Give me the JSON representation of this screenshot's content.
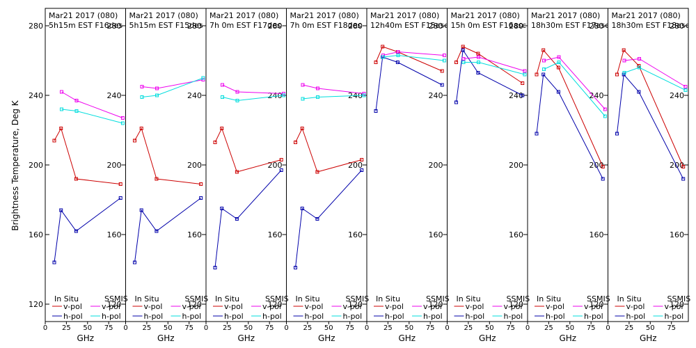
{
  "colors": {
    "insitu_v": "#cc0000",
    "insitu_h": "#0000aa",
    "ssmis_v": "#ee00ee",
    "ssmis_h": "#00dddd",
    "frame": "#000000",
    "background": "#ffffff"
  },
  "chart_data": {
    "type": "line",
    "ylabel": "Brightness Temperature, Deg K",
    "xlabel": "GHz",
    "xlim": [
      0,
      95
    ],
    "ylim": [
      110,
      290
    ],
    "yticks": [
      120,
      160,
      200,
      240,
      280
    ],
    "xticks": [
      0,
      25,
      50,
      75
    ],
    "xtick_labels": [
      "0",
      "25",
      "50",
      "75"
    ],
    "legend": {
      "insitu_header": "In Situ",
      "ssmis_header": "SSMIS",
      "vpol": "v-pol",
      "hpol": "h-pol"
    },
    "panels": [
      {
        "line1": "Mar21 2017 (080)",
        "line2": "5h15m EST F16des",
        "insitu_v": {
          "x": [
            10.7,
            18.7,
            36.5,
            89
          ],
          "y": [
            214,
            221,
            192,
            189
          ]
        },
        "insitu_h": {
          "x": [
            10.7,
            18.7,
            36.5,
            89
          ],
          "y": [
            144,
            174,
            162,
            181
          ]
        },
        "ssmis_v": {
          "x": [
            19.35,
            37,
            91.655
          ],
          "y": [
            242,
            237,
            227
          ]
        },
        "ssmis_h": {
          "x": [
            19.35,
            37,
            91.655
          ],
          "y": [
            232,
            231,
            224
          ]
        }
      },
      {
        "line1": "Mar21 2017 (080)",
        "line2": "5h15m EST F15des",
        "insitu_v": {
          "x": [
            10.7,
            18.7,
            36.5,
            89
          ],
          "y": [
            214,
            221,
            192,
            189
          ]
        },
        "insitu_h": {
          "x": [
            10.7,
            18.7,
            36.5,
            89
          ],
          "y": [
            144,
            174,
            162,
            181
          ]
        },
        "ssmis_v": {
          "x": [
            19.35,
            37,
            91.655
          ],
          "y": [
            245,
            244,
            249
          ]
        },
        "ssmis_h": {
          "x": [
            19.35,
            37,
            91.655
          ],
          "y": [
            239,
            240,
            250
          ]
        }
      },
      {
        "line1": "Mar21 2017 (080)",
        "line2": "7h 0m EST F17des",
        "insitu_v": {
          "x": [
            10.7,
            18.7,
            36.5,
            89
          ],
          "y": [
            213,
            221,
            196,
            203
          ]
        },
        "insitu_h": {
          "x": [
            10.7,
            18.7,
            36.5,
            89
          ],
          "y": [
            141,
            175,
            169,
            197
          ]
        },
        "ssmis_v": {
          "x": [
            19.35,
            37,
            91.655
          ],
          "y": [
            246,
            242,
            241
          ]
        },
        "ssmis_h": {
          "x": [
            19.35,
            37,
            91.655
          ],
          "y": [
            239,
            237,
            240
          ]
        }
      },
      {
        "line1": "Mar21 2017 (080)",
        "line2": "7h 0m EST F18des",
        "insitu_v": {
          "x": [
            10.7,
            18.7,
            36.5,
            89
          ],
          "y": [
            213,
            221,
            196,
            203
          ]
        },
        "insitu_h": {
          "x": [
            10.7,
            18.7,
            36.5,
            89
          ],
          "y": [
            141,
            175,
            169,
            197
          ]
        },
        "ssmis_v": {
          "x": [
            19.35,
            37,
            91.655
          ],
          "y": [
            246,
            244,
            241
          ]
        },
        "ssmis_h": {
          "x": [
            19.35,
            37,
            91.655
          ],
          "y": [
            238,
            239,
            240
          ]
        }
      },
      {
        "line1": "Mar21 2017 (080)",
        "line2": "12h40m EST F15asc",
        "insitu_v": {
          "x": [
            10.7,
            18.7,
            36.5,
            89
          ],
          "y": [
            259,
            268,
            265,
            254
          ]
        },
        "insitu_h": {
          "x": [
            10.7,
            18.7,
            36.5,
            89
          ],
          "y": [
            231,
            262,
            259,
            246
          ]
        },
        "ssmis_v": {
          "x": [
            19.35,
            37,
            91.655
          ],
          "y": [
            263,
            265,
            263
          ]
        },
        "ssmis_h": {
          "x": [
            19.35,
            37,
            91.655
          ],
          "y": [
            262,
            263,
            260
          ]
        }
      },
      {
        "line1": "Mar21 2017 (080)",
        "line2": "15h 0m EST F16asc",
        "insitu_v": {
          "x": [
            10.7,
            18.7,
            36.5,
            89
          ],
          "y": [
            259,
            268,
            264,
            247
          ]
        },
        "insitu_h": {
          "x": [
            10.7,
            18.7,
            36.5,
            89
          ],
          "y": [
            236,
            266,
            253,
            240
          ]
        },
        "ssmis_v": {
          "x": [
            19.35,
            37,
            91.655
          ],
          "y": [
            261,
            262,
            254
          ]
        },
        "ssmis_h": {
          "x": [
            19.35,
            37,
            91.655
          ],
          "y": [
            259,
            259,
            252
          ]
        }
      },
      {
        "line1": "Mar21 2017 (080)",
        "line2": "18h30m EST F17asc",
        "insitu_v": {
          "x": [
            10.7,
            18.7,
            36.5,
            89
          ],
          "y": [
            252,
            266,
            256,
            199
          ]
        },
        "insitu_h": {
          "x": [
            10.7,
            18.7,
            36.5,
            89
          ],
          "y": [
            218,
            252,
            242,
            192
          ]
        },
        "ssmis_v": {
          "x": [
            19.35,
            37,
            91.655
          ],
          "y": [
            260,
            262,
            232
          ]
        },
        "ssmis_h": {
          "x": [
            19.35,
            37,
            91.655
          ],
          "y": [
            255,
            259,
            228
          ]
        }
      },
      {
        "line1": "Mar21 2017 (080)",
        "line2": "18h30m EST F18asc",
        "insitu_v": {
          "x": [
            10.7,
            18.7,
            36.5,
            89
          ],
          "y": [
            252,
            266,
            257,
            199
          ]
        },
        "insitu_h": {
          "x": [
            10.7,
            18.7,
            36.5,
            89
          ],
          "y": [
            218,
            252,
            242,
            192
          ]
        },
        "ssmis_v": {
          "x": [
            19.35,
            37,
            91.655
          ],
          "y": [
            260,
            261,
            245
          ]
        },
        "ssmis_h": {
          "x": [
            19.35,
            37,
            91.655
          ],
          "y": [
            253,
            256,
            243
          ]
        }
      }
    ]
  }
}
